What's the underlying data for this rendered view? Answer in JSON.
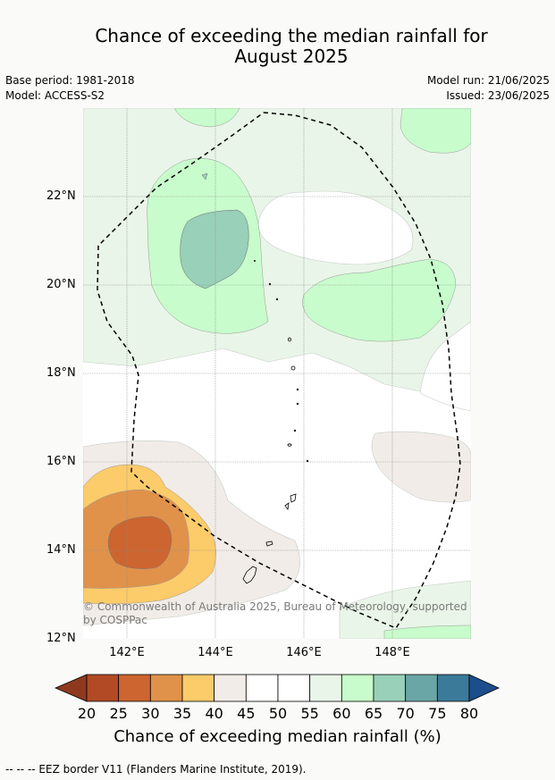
{
  "title": {
    "line1": "Chance of exceeding the median rainfall for",
    "line2": "August 2025"
  },
  "meta": {
    "base_period": "Base period: 1981-2018",
    "model": "Model: ACCESS-S2",
    "model_run": "Model run: 21/06/2025",
    "issued": "Issued: 23/06/2025"
  },
  "map": {
    "lat_labels": [
      "22°N",
      "20°N",
      "18°N",
      "16°N",
      "14°N",
      "12°N"
    ],
    "lon_labels": [
      "142°E",
      "144°E",
      "146°E",
      "148°E"
    ],
    "copyright": "© Commonwealth of Australia 2025, Bureau of Meteorology, supported by COSPPac"
  },
  "colorbar": {
    "title": "Chance of exceeding median rainfall (%)",
    "ticks": [
      "20",
      "25",
      "30",
      "35",
      "40",
      "45",
      "50",
      "55",
      "60",
      "65",
      "70",
      "75",
      "80"
    ],
    "colors": [
      "#8f3a1f",
      "#b24a25",
      "#cd6530",
      "#e0924a",
      "#fccb6a",
      "#f1ece7",
      "#ffffff",
      "#ffffff",
      "#e9f5e8",
      "#c8fccc",
      "#99d0b9",
      "#6aa6a5",
      "#3c7a9a",
      "#1b4e8a"
    ]
  },
  "footnote": "-- -- -- EEZ border V11 (Flanders Marine Institute, 2019)."
}
